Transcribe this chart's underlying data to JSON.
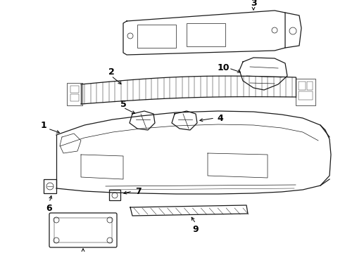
{
  "bg_color": "#ffffff",
  "line_color": "#1a1a1a",
  "lw": 0.9,
  "lw_thin": 0.5,
  "font_size": 9,
  "fig_w": 4.9,
  "fig_h": 3.6,
  "dpi": 100
}
